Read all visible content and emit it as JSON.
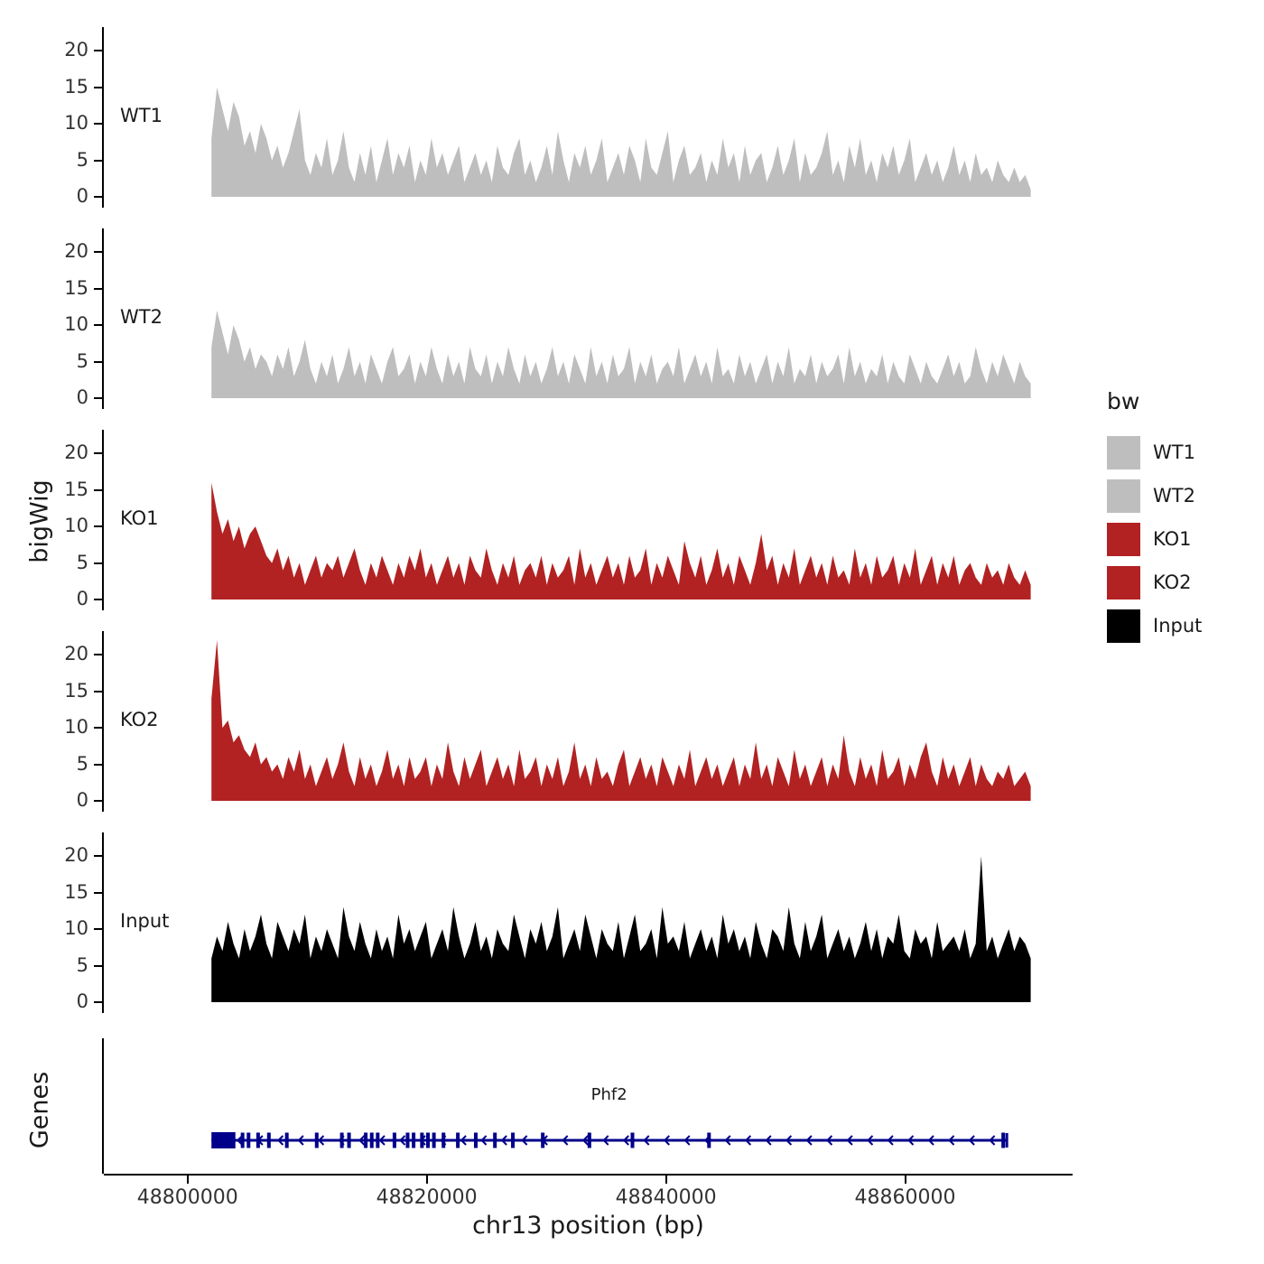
{
  "labels": {
    "ylabel": "bigWig",
    "genes_panel": "Genes",
    "xlabel": "chr13 position (bp)"
  },
  "legend": {
    "title": "bw",
    "entries": [
      {
        "label": "WT1",
        "color": "#BEBEBE"
      },
      {
        "label": "WT2",
        "color": "#BEBEBE"
      },
      {
        "label": "KO1",
        "color": "#B22222"
      },
      {
        "label": "KO2",
        "color": "#B22222"
      },
      {
        "label": "Input",
        "color": "#000000"
      }
    ]
  },
  "chart_data": {
    "type": "area",
    "title": "",
    "xlabel": "chr13 position (bp)",
    "ylabel": "bigWig",
    "xlim": [
      48793000,
      48874000
    ],
    "x_ticks": [
      48800000,
      48820000,
      48840000,
      48860000
    ],
    "x_tick_labels": [
      "48800000",
      "48820000",
      "48840000",
      "48860000"
    ],
    "ylim": [
      0,
      22.5
    ],
    "y_ticks": [
      0,
      5,
      10,
      15,
      20
    ],
    "grid": false,
    "legend_position": "right",
    "signal_x_start": 48802000,
    "signal_x_end": 48870500,
    "series": [
      {
        "name": "WT1",
        "color": "#BEBEBE",
        "values": [
          8,
          15,
          12,
          9,
          13,
          11,
          7,
          9,
          6,
          10,
          8,
          5,
          7,
          4,
          6,
          9,
          12,
          5,
          3,
          6,
          4,
          8,
          3,
          5,
          9,
          4,
          2,
          6,
          3,
          7,
          2,
          5,
          8,
          3,
          6,
          4,
          7,
          2,
          5,
          3,
          8,
          4,
          6,
          3,
          5,
          7,
          2,
          4,
          6,
          3,
          5,
          2,
          7,
          4,
          3,
          6,
          8,
          3,
          5,
          2,
          4,
          7,
          3,
          9,
          5,
          2,
          6,
          4,
          7,
          3,
          5,
          8,
          2,
          4,
          6,
          3,
          7,
          5,
          2,
          8,
          4,
          3,
          6,
          9,
          2,
          5,
          7,
          3,
          4,
          6,
          2,
          5,
          3,
          8,
          4,
          6,
          2,
          7,
          3,
          5,
          6,
          2,
          4,
          7,
          3,
          5,
          8,
          2,
          6,
          3,
          4,
          6,
          9,
          3,
          5,
          2,
          7,
          4,
          8,
          3,
          5,
          2,
          6,
          4,
          7,
          3,
          5,
          8,
          2,
          4,
          6,
          3,
          5,
          2,
          4,
          7,
          3,
          5,
          2,
          6,
          3,
          4,
          2,
          5,
          3,
          2,
          4,
          2,
          3,
          1
        ]
      },
      {
        "name": "WT2",
        "color": "#BEBEBE",
        "values": [
          7,
          12,
          9,
          6,
          10,
          8,
          5,
          7,
          4,
          6,
          5,
          3,
          6,
          4,
          7,
          3,
          5,
          8,
          4,
          2,
          5,
          3,
          6,
          2,
          4,
          7,
          3,
          5,
          2,
          6,
          4,
          2,
          5,
          7,
          3,
          4,
          6,
          2,
          5,
          3,
          7,
          4,
          2,
          6,
          3,
          5,
          2,
          7,
          4,
          3,
          6,
          2,
          5,
          3,
          7,
          4,
          2,
          6,
          3,
          5,
          2,
          4,
          7,
          3,
          5,
          2,
          6,
          4,
          2,
          7,
          3,
          5,
          2,
          6,
          3,
          4,
          7,
          2,
          5,
          3,
          6,
          2,
          4,
          5,
          3,
          7,
          2,
          4,
          6,
          3,
          5,
          2,
          7,
          3,
          4,
          2,
          6,
          3,
          5,
          2,
          4,
          6,
          2,
          5,
          3,
          7,
          2,
          4,
          3,
          6,
          2,
          5,
          3,
          4,
          6,
          2,
          7,
          3,
          5,
          2,
          4,
          3,
          6,
          2,
          5,
          3,
          2,
          6,
          4,
          2,
          5,
          3,
          2,
          4,
          6,
          3,
          5,
          2,
          3,
          7,
          4,
          2,
          5,
          3,
          6,
          4,
          2,
          5,
          3,
          2
        ]
      },
      {
        "name": "KO1",
        "color": "#B22222",
        "values": [
          16,
          12,
          9,
          11,
          8,
          10,
          7,
          9,
          10,
          8,
          6,
          5,
          7,
          4,
          6,
          3,
          5,
          2,
          4,
          6,
          3,
          5,
          4,
          6,
          3,
          5,
          7,
          4,
          2,
          5,
          3,
          6,
          4,
          2,
          5,
          3,
          6,
          4,
          7,
          3,
          5,
          2,
          4,
          6,
          3,
          5,
          2,
          6,
          4,
          3,
          7,
          4,
          2,
          5,
          3,
          6,
          2,
          4,
          5,
          3,
          6,
          2,
          5,
          3,
          4,
          6,
          2,
          7,
          3,
          5,
          2,
          4,
          6,
          3,
          5,
          2,
          6,
          3,
          4,
          7,
          2,
          5,
          3,
          6,
          4,
          2,
          8,
          5,
          3,
          6,
          2,
          4,
          7,
          3,
          5,
          2,
          6,
          4,
          2,
          5,
          9,
          4,
          6,
          2,
          5,
          3,
          7,
          2,
          4,
          6,
          3,
          5,
          2,
          6,
          3,
          4,
          2,
          7,
          3,
          5,
          2,
          6,
          3,
          4,
          6,
          2,
          5,
          3,
          7,
          2,
          4,
          6,
          2,
          5,
          3,
          6,
          2,
          4,
          5,
          3,
          2,
          5,
          3,
          4,
          2,
          5,
          3,
          2,
          4,
          2
        ]
      },
      {
        "name": "KO2",
        "color": "#B22222",
        "values": [
          14,
          22,
          10,
          11,
          8,
          9,
          7,
          6,
          8,
          5,
          6,
          4,
          5,
          3,
          6,
          4,
          7,
          3,
          5,
          2,
          4,
          6,
          3,
          5,
          8,
          4,
          2,
          6,
          3,
          5,
          2,
          4,
          7,
          3,
          5,
          2,
          6,
          3,
          4,
          6,
          2,
          5,
          3,
          8,
          4,
          2,
          6,
          3,
          5,
          7,
          2,
          4,
          6,
          3,
          5,
          2,
          7,
          3,
          4,
          6,
          2,
          5,
          3,
          6,
          2,
          4,
          8,
          3,
          5,
          2,
          6,
          3,
          4,
          2,
          5,
          7,
          2,
          4,
          6,
          3,
          5,
          2,
          6,
          4,
          2,
          5,
          3,
          7,
          2,
          4,
          6,
          3,
          5,
          2,
          4,
          6,
          2,
          5,
          3,
          8,
          3,
          5,
          2,
          6,
          4,
          2,
          7,
          3,
          5,
          2,
          4,
          6,
          2,
          5,
          3,
          9,
          4,
          2,
          6,
          3,
          5,
          2,
          7,
          3,
          4,
          6,
          2,
          5,
          3,
          6,
          8,
          4,
          2,
          6,
          3,
          5,
          2,
          4,
          6,
          2,
          5,
          3,
          2,
          4,
          3,
          5,
          2,
          3,
          4,
          2
        ]
      },
      {
        "name": "Input",
        "color": "#000000",
        "values": [
          6,
          9,
          7,
          11,
          8,
          6,
          10,
          7,
          9,
          12,
          8,
          6,
          11,
          9,
          7,
          10,
          8,
          12,
          6,
          9,
          7,
          10,
          8,
          6,
          13,
          9,
          7,
          11,
          8,
          6,
          10,
          7,
          9,
          6,
          12,
          8,
          10,
          7,
          9,
          11,
          6,
          8,
          10,
          7,
          13,
          9,
          6,
          8,
          11,
          7,
          9,
          6,
          10,
          8,
          7,
          12,
          9,
          6,
          10,
          8,
          11,
          7,
          9,
          13,
          6,
          8,
          10,
          7,
          12,
          9,
          6,
          10,
          8,
          7,
          11,
          6,
          9,
          12,
          7,
          8,
          10,
          6,
          13,
          8,
          9,
          7,
          11,
          6,
          8,
          10,
          7,
          9,
          6,
          12,
          8,
          10,
          7,
          9,
          6,
          11,
          8,
          6,
          10,
          9,
          7,
          13,
          8,
          6,
          11,
          7,
          9,
          12,
          6,
          8,
          10,
          7,
          9,
          6,
          8,
          11,
          7,
          10,
          6,
          9,
          8,
          12,
          7,
          6,
          10,
          8,
          9,
          6,
          11,
          7,
          8,
          9,
          7,
          10,
          6,
          8,
          20,
          7,
          9,
          6,
          8,
          10,
          7,
          9,
          8,
          6
        ]
      }
    ],
    "gene": {
      "name": "Phf2",
      "strand": "-",
      "start": 48802000,
      "end": 48868500,
      "color": "#00008B",
      "start_box": [
        48802000,
        48804000
      ],
      "exons": [
        48804600,
        48805100,
        48805900,
        48806800,
        48808300,
        48810800,
        48812900,
        48813500,
        48814900,
        48815400,
        48815900,
        48817300,
        48818400,
        48818900,
        48819600,
        48820100,
        48820600,
        48821400,
        48822600,
        48824100,
        48825700,
        48827200,
        48829700,
        48833600,
        48837200,
        48843600,
        48868200
      ]
    }
  }
}
